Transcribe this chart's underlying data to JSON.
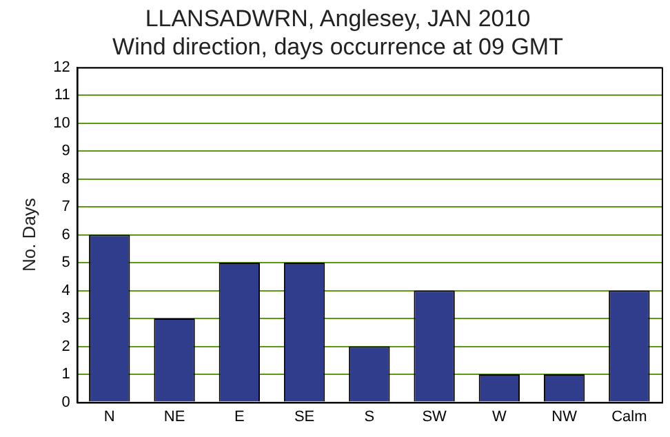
{
  "chart_data": {
    "type": "bar",
    "title": "LLANSADWRN, Anglesey, JAN 2010",
    "subtitle": "Wind direction, days occurrence at 09 GMT",
    "ylabel": "No. Days",
    "categories": [
      "N",
      "NE",
      "E",
      "SE",
      "S",
      "SW",
      "W",
      "NW",
      "Calm"
    ],
    "values": [
      6,
      3,
      5,
      5,
      2,
      4,
      1,
      1,
      4
    ],
    "color": "#2f3d8c",
    "ylim": [
      0,
      12
    ],
    "yticks": [
      0,
      1,
      2,
      3,
      4,
      5,
      6,
      7,
      8,
      9,
      10,
      11,
      12
    ],
    "grid": "y",
    "legend": false
  }
}
